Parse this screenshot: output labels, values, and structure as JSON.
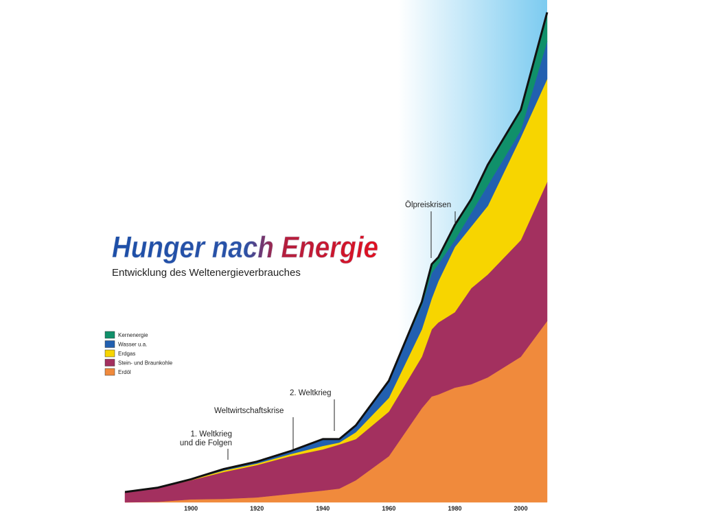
{
  "chart_data": {
    "type": "area",
    "stacked": true,
    "title": "Hunger nach Energie",
    "subtitle": "Entwicklung des Weltenergieverbrauches",
    "x": [
      1880,
      1890,
      1900,
      1910,
      1920,
      1930,
      1940,
      1945,
      1950,
      1960,
      1970,
      1973,
      1975,
      1980,
      1985,
      1990,
      2000,
      2008
    ],
    "xlim": [
      1880,
      2008
    ],
    "xticks": [
      1900,
      1920,
      1940,
      1960,
      1980,
      2000
    ],
    "ylim": [
      0,
      100
    ],
    "series": [
      {
        "name": "Erdöl",
        "color": "#f08a3c",
        "values": [
          0,
          0.1,
          0.6,
          0.7,
          1,
          1.7,
          2.4,
          2.8,
          4.5,
          9.4,
          19.2,
          21.6,
          22,
          23.4,
          24.1,
          25.5,
          29.7,
          37
        ]
      },
      {
        "name": "Stein- und Braunkohle",
        "color": "#a3305f",
        "values": [
          2.1,
          2.8,
          3.9,
          5.5,
          6.6,
          7.7,
          8.4,
          9,
          8.4,
          9.1,
          10.5,
          13.7,
          14.7,
          15.4,
          19.6,
          21,
          23.8,
          28.4
        ]
      },
      {
        "name": "Erdgas",
        "color": "#f7d500",
        "values": [
          0,
          0,
          0.1,
          0.3,
          0.3,
          0.4,
          0.7,
          0.4,
          1.4,
          2.8,
          5.6,
          6.3,
          8.4,
          13.3,
          12.6,
          14,
          21,
          21
        ]
      },
      {
        "name": "Wasser u.a.",
        "color": "#2260b0",
        "values": [
          0,
          0.1,
          0.1,
          0.3,
          0.4,
          0.6,
          1.4,
          0.7,
          1.4,
          3.5,
          4.9,
          5.2,
          3.5,
          1.4,
          2.8,
          4.2,
          1.4,
          7.7
        ]
      },
      {
        "name": "Kernenergie",
        "color": "#10906a",
        "values": [
          0,
          0,
          0,
          0,
          0,
          0,
          0,
          0,
          0,
          0,
          0.7,
          1.8,
          1.4,
          3.1,
          2.8,
          4.2,
          4.2,
          5.9
        ]
      }
    ],
    "annotations": [
      "Ölpreiskrisen",
      "2. Weltkrieg",
      "Weltwirtschaftskrise",
      [
        "1. Weltkrieg",
        "und die Folgen"
      ]
    ]
  }
}
